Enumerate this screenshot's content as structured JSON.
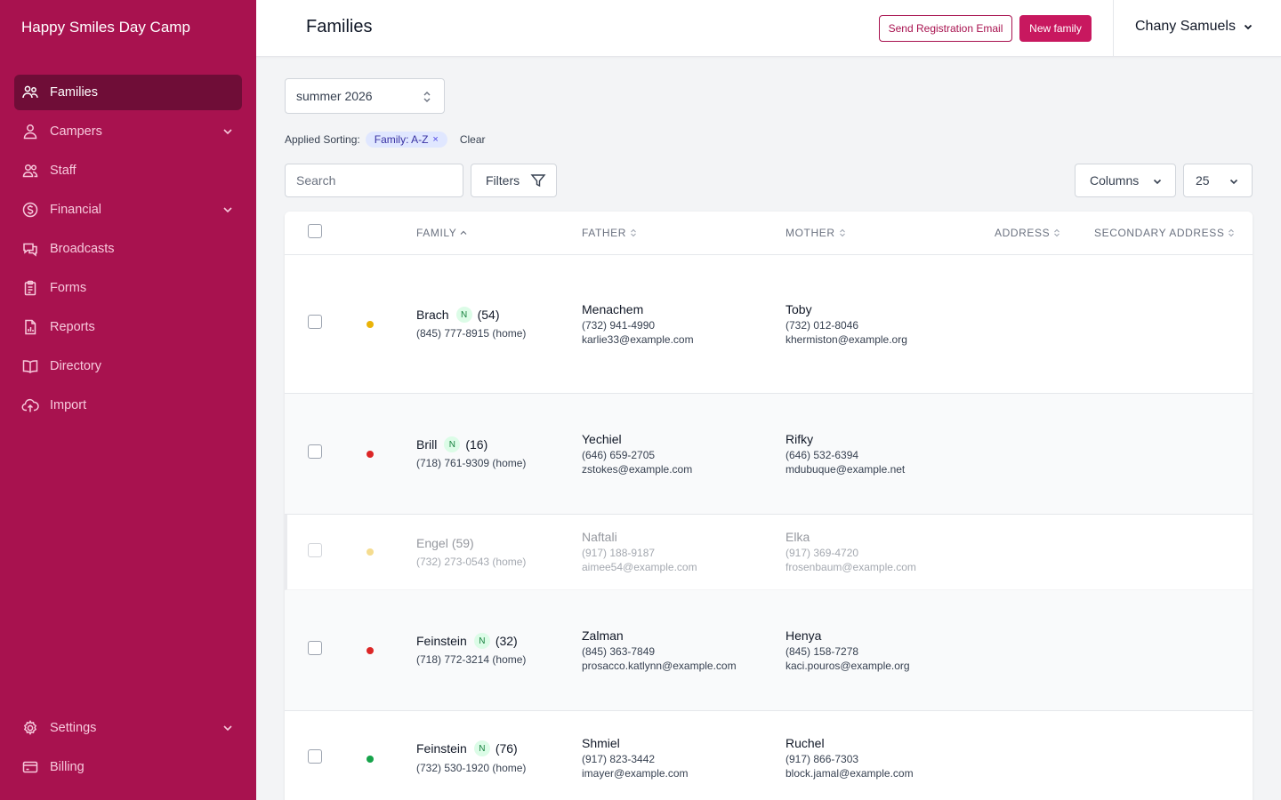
{
  "app": {
    "brand": "Happy Smiles Day Camp"
  },
  "sidebar": {
    "items": [
      {
        "label": "Families",
        "icon": "users-icon",
        "active": true
      },
      {
        "label": "Campers",
        "icon": "user-icon",
        "expandable": true
      },
      {
        "label": "Staff",
        "icon": "staff-icon"
      },
      {
        "label": "Financial",
        "icon": "dollar-icon",
        "expandable": true
      },
      {
        "label": "Broadcasts",
        "icon": "chat-icon"
      },
      {
        "label": "Forms",
        "icon": "clipboard-icon"
      },
      {
        "label": "Reports",
        "icon": "report-icon"
      },
      {
        "label": "Directory",
        "icon": "book-icon"
      },
      {
        "label": "Import",
        "icon": "cloud-upload-icon"
      }
    ],
    "bottom": [
      {
        "label": "Settings",
        "icon": "gear-icon",
        "expandable": true
      },
      {
        "label": "Billing",
        "icon": "credit-card-icon"
      }
    ]
  },
  "header": {
    "title": "Families",
    "send_email_label": "Send Registration Email",
    "new_family_label": "New family",
    "user_name": "Chany Samuels"
  },
  "controls": {
    "season": "summer 2026",
    "applied_sorting_label": "Applied Sorting:",
    "sort_chip": "Family: A-Z",
    "sort_chip_remove": "×",
    "clear_label": "Clear",
    "search_placeholder": "Search",
    "filters_label": "Filters",
    "columns_label": "Columns",
    "per_page": "25"
  },
  "table": {
    "headers": {
      "family": "FAMILY",
      "father": "FATHER",
      "mother": "MOTHER",
      "address": "ADDRESS",
      "secondary_address": "SECONDARY ADDRESS"
    },
    "rows": [
      {
        "family": "Brach",
        "new_badge": "N",
        "count": "(54)",
        "phone": "(845) 777-8915 (home)",
        "status_color": "#eab308",
        "father": {
          "name": "Menachem",
          "phone": "(732) 941-4990",
          "email": "karlie33@example.com"
        },
        "mother": {
          "name": "Toby",
          "phone": "(732) 012-8046",
          "email": "khermiston@example.org"
        }
      },
      {
        "family": "Brill",
        "new_badge": "N",
        "count": "(16)",
        "phone": "(718) 761-9309 (home)",
        "status_color": "#dc2626",
        "father": {
          "name": "Yechiel",
          "phone": "(646) 659-2705",
          "email": "zstokes@example.com"
        },
        "mother": {
          "name": "Rifky",
          "phone": "(646) 532-6394",
          "email": "mdubuque@example.net"
        }
      },
      {
        "family": "Engel",
        "new_badge": "",
        "count": "(59)",
        "phone": "(732) 273-0543 (home)",
        "status_color": "#eab308",
        "father": {
          "name": "Naftali",
          "phone": "(917) 188-9187",
          "email": "aimee54@example.com"
        },
        "mother": {
          "name": "Elka",
          "phone": "(917) 369-4720",
          "email": "frosenbaum@example.com"
        }
      },
      {
        "family": "Feinstein",
        "new_badge": "N",
        "count": "(32)",
        "phone": "(718) 772-3214 (home)",
        "status_color": "#dc2626",
        "father": {
          "name": "Zalman",
          "phone": "(845) 363-7849",
          "email": "prosacco.katlynn@example.com"
        },
        "mother": {
          "name": "Henya",
          "phone": "(845) 158-7278",
          "email": "kaci.pouros@example.org"
        }
      },
      {
        "family": "Feinstein",
        "new_badge": "N",
        "count": "(76)",
        "phone": "(732) 530-1920 (home)",
        "status_color": "#16a34a",
        "father": {
          "name": "Shmiel",
          "phone": "(917) 823-3442",
          "email": "imayer@example.com"
        },
        "mother": {
          "name": "Ruchel",
          "phone": "(917) 866-7303",
          "email": "block.jamal@example.com"
        }
      }
    ]
  }
}
